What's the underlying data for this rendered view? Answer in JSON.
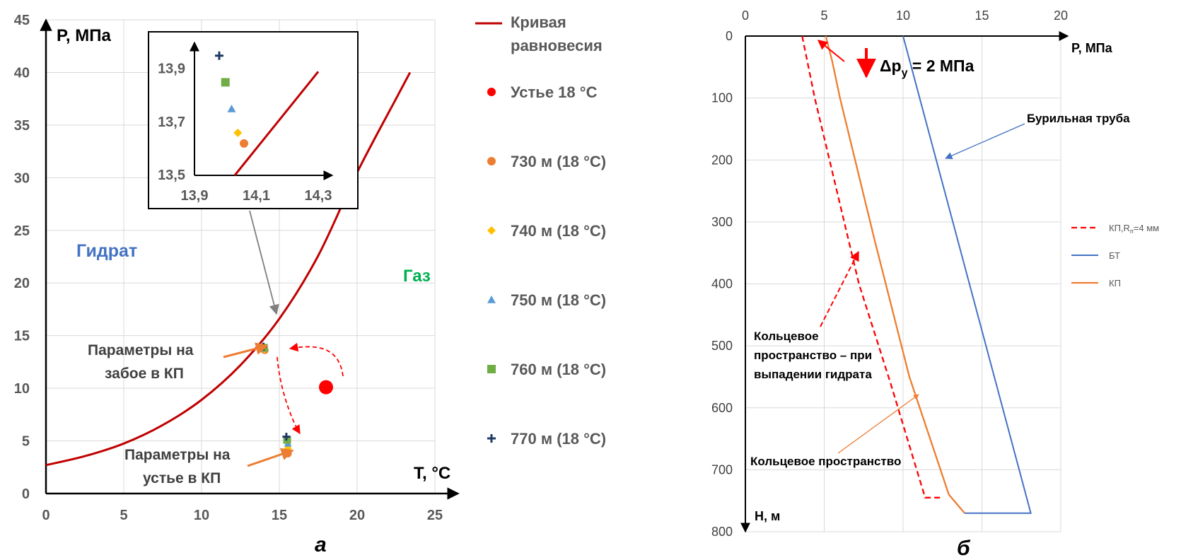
{
  "chart_data": [
    {
      "type": "line",
      "panel_label": "а",
      "xlabel": "T, °C",
      "ylabel": "P, МПа",
      "xlim": [
        0,
        25
      ],
      "ylim": [
        0,
        45
      ],
      "xticks": [
        "0",
        "5",
        "10",
        "15",
        "20",
        "25"
      ],
      "yticks": [
        "0",
        "5",
        "10",
        "15",
        "20",
        "25",
        "30",
        "35",
        "40",
        "45"
      ],
      "grid": true,
      "legend_position": "right",
      "region_labels": {
        "hydrate": "Гидрат",
        "gas": "Газ"
      },
      "annotations": {
        "bottom": "Параметры на забое в КП",
        "wellhead": "Параметры на устье в КП"
      },
      "series": [
        {
          "name": "Кривая равновесия",
          "kind": "line",
          "color": "#C00000",
          "x": [
            0,
            2.5,
            5,
            7.5,
            10,
            12.5,
            15,
            17.5,
            20,
            22.5,
            23.4
          ],
          "y": [
            2.7,
            3.55,
            4.75,
            6.5,
            8.9,
            12.2,
            16.6,
            22.6,
            30.5,
            37.5,
            40
          ]
        },
        {
          "name": "Устье 18 °C",
          "marker": "circle",
          "color": "#FF0000",
          "x": [
            18
          ],
          "y": [
            10.1
          ]
        },
        {
          "name": "730 м (18 °C)",
          "marker": "circle",
          "color": "#ED7D31",
          "x": [
            14.06,
            15.55
          ],
          "y": [
            13.62,
            3.8
          ]
        },
        {
          "name": "740 м (18 °C)",
          "marker": "diamond",
          "color": "#FFC000",
          "x": [
            14.04,
            15.55
          ],
          "y": [
            13.66,
            4.3
          ]
        },
        {
          "name": "750 м (18 °C)",
          "marker": "triangle",
          "color": "#5B9BD5",
          "x": [
            14.02,
            15.55
          ],
          "y": [
            13.75,
            4.75
          ]
        },
        {
          "name": "760 м (18 °C)",
          "marker": "square",
          "color": "#70AD47",
          "x": [
            14.0,
            15.5
          ],
          "y": [
            13.85,
            5.1
          ]
        },
        {
          "name": "770 м (18 °C)",
          "marker": "plus",
          "color": "#1F3864",
          "x": [
            13.98,
            15.45
          ],
          "y": [
            13.95,
            5.4
          ]
        }
      ],
      "inset": {
        "xlim": [
          13.9,
          14.3
        ],
        "ylim": [
          13.5,
          14.0
        ],
        "xticks": [
          "13,9",
          "14,1",
          "14,3"
        ],
        "yticks": [
          "13,5",
          "13,7",
          "13,9"
        ],
        "curve": {
          "x": [
            14.03,
            14.3
          ],
          "y": [
            13.5,
            13.89
          ]
        }
      }
    },
    {
      "type": "line",
      "panel_label": "б",
      "xlabel": "P, МПа",
      "ylabel": "H, м",
      "xlim": [
        0,
        20
      ],
      "ylim": [
        0,
        800
      ],
      "y_inverted": true,
      "x_axis_position": "top",
      "xticks": [
        "0",
        "5",
        "10",
        "15",
        "20"
      ],
      "yticks": [
        "0",
        "100",
        "200",
        "300",
        "400",
        "500",
        "600",
        "700",
        "800"
      ],
      "grid": true,
      "legend_position": "right",
      "delta_label": {
        "main": "Δp",
        "sub": "y",
        "rest": " = 2 МПа"
      },
      "annotations": {
        "drill_pipe": "Бурильная труба",
        "annulus": "Кольцевое пространство",
        "hydrate_1": "Кольцевое",
        "hydrate_2": "пространство – при",
        "hydrate_3": "выпадении гидрата"
      },
      "legend": {
        "kp_rn_main": "КП,R",
        "kp_rn_sub": "п",
        "kp_rn_rest": "=4 мм",
        "bt": "БТ",
        "kp": "КП"
      },
      "series": [
        {
          "name": "КП,Rп=4 мм",
          "color": "#FF0000",
          "dash": true,
          "x": [
            3.6,
            4.4,
            7.2,
            9.2,
            11.4,
            11.8,
            12.5
          ],
          "y": [
            0,
            100,
            400,
            560,
            745,
            745,
            745
          ]
        },
        {
          "name": "БТ",
          "color": "#4472C4",
          "x": [
            10,
            18.1,
            13.9
          ],
          "y": [
            0,
            770,
            770
          ]
        },
        {
          "name": "КП",
          "color": "#ED7D31",
          "x": [
            5.1,
            5.5,
            6.0,
            8.2,
            10.4,
            12.9,
            13.9
          ],
          "y": [
            0,
            40,
            100,
            330,
            550,
            740,
            770
          ]
        }
      ]
    }
  ]
}
